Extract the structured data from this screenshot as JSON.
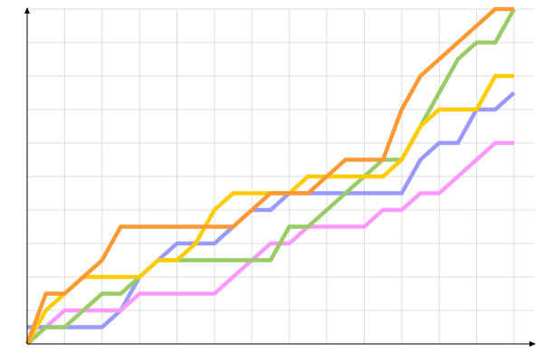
{
  "chart_data": {
    "type": "line",
    "title": "",
    "xlabel": "",
    "ylabel": "",
    "xlim": [
      0,
      26
    ],
    "ylim": [
      0,
      10
    ],
    "grid": true,
    "x": [
      0,
      1,
      2,
      3,
      4,
      5,
      6,
      7,
      8,
      9,
      10,
      11,
      12,
      13,
      14,
      15,
      16,
      17,
      18,
      19,
      20,
      21,
      22,
      23,
      24,
      25,
      26
    ],
    "series": [
      {
        "color": "#9999ff",
        "values": [
          0.5,
          0.5,
          0.5,
          0.5,
          0.5,
          1,
          2,
          2.5,
          3,
          3,
          3,
          3.5,
          4,
          4,
          4.5,
          4.5,
          4.5,
          4.5,
          4.5,
          4.5,
          4.5,
          5.5,
          6,
          6,
          7,
          7,
          7.5
        ]
      },
      {
        "color": "#ff99ff",
        "values": [
          0,
          0.5,
          1,
          1,
          1,
          1,
          1.5,
          1.5,
          1.5,
          1.5,
          1.5,
          2,
          2.5,
          3,
          3,
          3.5,
          3.5,
          3.5,
          3.5,
          4,
          4,
          4.5,
          4.5,
          5,
          5.5,
          6,
          6
        ]
      },
      {
        "color": "#99cc66",
        "values": [
          0,
          0.5,
          0.5,
          1,
          1.5,
          1.5,
          2,
          2.5,
          2.5,
          2.5,
          2.5,
          2.5,
          2.5,
          2.5,
          3.5,
          3.5,
          4,
          4.5,
          5,
          5.5,
          5.5,
          6.5,
          7.5,
          8.5,
          9,
          9,
          10
        ]
      },
      {
        "color": "#ffcc00",
        "values": [
          0,
          1,
          1.5,
          2,
          2,
          2,
          2,
          2.5,
          2.5,
          3,
          4,
          4.5,
          4.5,
          4.5,
          4.5,
          5,
          5,
          5,
          5,
          5,
          5.5,
          6.5,
          7,
          7,
          7,
          8,
          8
        ]
      },
      {
        "color": "#ff9933",
        "values": [
          0,
          1.5,
          1.5,
          2,
          2.5,
          3.5,
          3.5,
          3.5,
          3.5,
          3.5,
          3.5,
          3.5,
          4,
          4.5,
          4.5,
          4.5,
          5,
          5.5,
          5.5,
          5.5,
          7,
          8,
          8.5,
          9,
          9.5,
          10,
          10
        ]
      }
    ]
  }
}
